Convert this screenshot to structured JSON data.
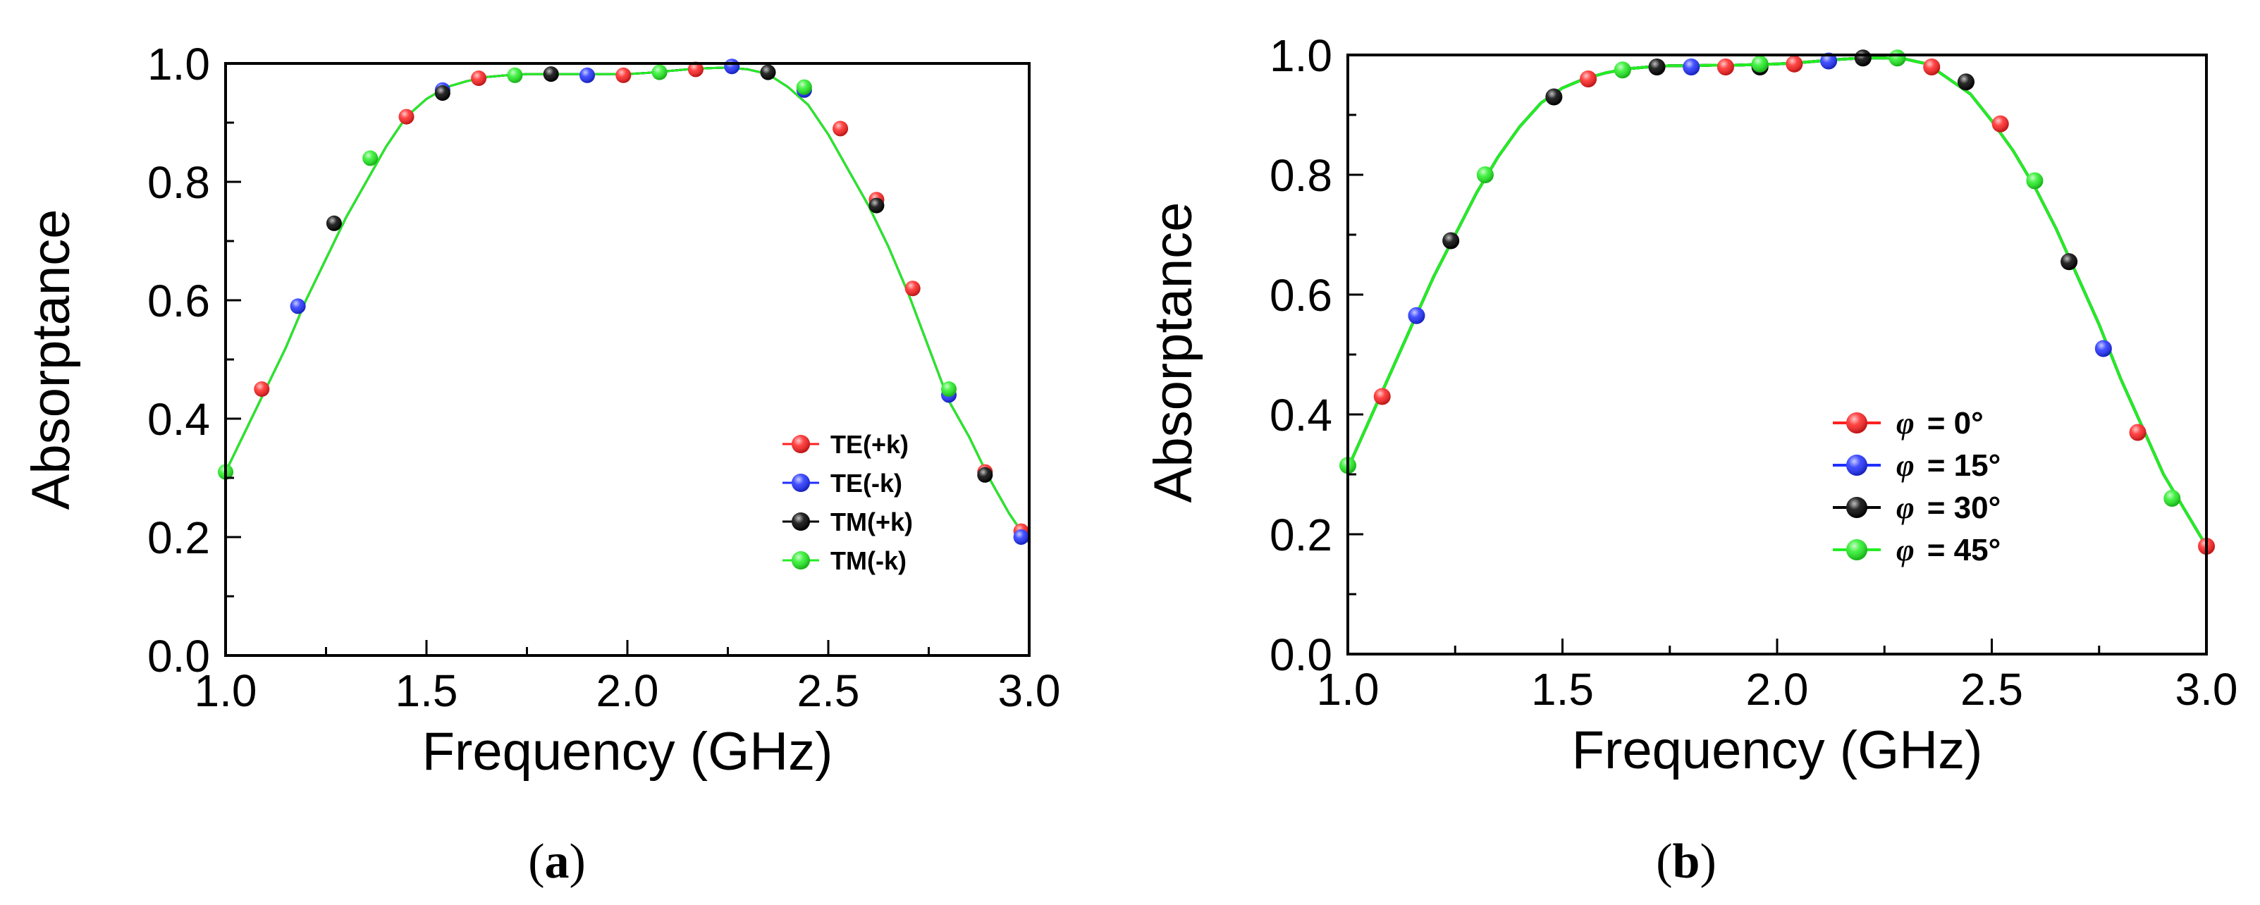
{
  "chart_data": [
    {
      "type": "line",
      "panel_id": "a",
      "caption": {
        "open": "(",
        "letter": "a",
        "close": ")"
      },
      "xlabel": "Frequency (GHz)",
      "ylabel": "Absorptance",
      "xlim": [
        1.0,
        3.0
      ],
      "ylim": [
        0.0,
        1.0
      ],
      "xticks": [
        "1.0",
        "1.5",
        "2.0",
        "2.5",
        "3.0"
      ],
      "yticks": [
        "0.0",
        "0.2",
        "0.4",
        "0.6",
        "0.8",
        "1.0"
      ],
      "grid": false,
      "legend_position": "center-right",
      "curve": {
        "x": [
          1.0,
          1.05,
          1.1,
          1.15,
          1.2,
          1.25,
          1.3,
          1.35,
          1.4,
          1.45,
          1.5,
          1.55,
          1.6,
          1.65,
          1.7,
          1.75,
          1.8,
          1.85,
          1.9,
          1.95,
          2.0,
          2.05,
          2.1,
          2.15,
          2.2,
          2.25,
          2.3,
          2.35,
          2.4,
          2.45,
          2.5,
          2.55,
          2.6,
          2.65,
          2.7,
          2.75,
          2.8,
          2.85,
          2.9,
          2.95,
          3.0
        ],
        "y": [
          0.31,
          0.38,
          0.45,
          0.52,
          0.6,
          0.67,
          0.74,
          0.8,
          0.86,
          0.91,
          0.94,
          0.96,
          0.97,
          0.977,
          0.98,
          0.982,
          0.982,
          0.982,
          0.982,
          0.982,
          0.982,
          0.984,
          0.987,
          0.99,
          0.992,
          0.993,
          0.99,
          0.982,
          0.96,
          0.93,
          0.88,
          0.82,
          0.76,
          0.69,
          0.61,
          0.52,
          0.43,
          0.37,
          0.3,
          0.24,
          0.19
        ]
      },
      "series": [
        {
          "name": "TE(+k)",
          "color": "#ff2020",
          "x": [
            1.09,
            1.45,
            1.63,
            1.99,
            2.17,
            2.53,
            2.62,
            2.71,
            2.89,
            2.98
          ],
          "y": [
            0.45,
            0.91,
            0.975,
            0.98,
            0.99,
            0.89,
            0.77,
            0.62,
            0.31,
            0.21
          ]
        },
        {
          "name": "TE(-k)",
          "color": "#2030ff",
          "x": [
            1.18,
            1.54,
            1.9,
            2.26,
            2.44,
            2.8,
            2.98
          ],
          "y": [
            0.59,
            0.955,
            0.98,
            0.995,
            0.955,
            0.44,
            0.2
          ]
        },
        {
          "name": "TM(+k)",
          "color": "#000000",
          "x": [
            1.27,
            1.54,
            1.81,
            2.35,
            2.62,
            2.89
          ],
          "y": [
            0.73,
            0.95,
            0.982,
            0.985,
            0.76,
            0.305
          ]
        },
        {
          "name": "TM(-k)",
          "color": "#22ee22",
          "x": [
            1.0,
            1.36,
            1.72,
            2.08,
            2.44,
            2.8
          ],
          "y": [
            0.31,
            0.84,
            0.98,
            0.985,
            0.96,
            0.45
          ]
        }
      ]
    },
    {
      "type": "line",
      "panel_id": "b",
      "caption": {
        "open": "(",
        "letter": "b",
        "close": ")"
      },
      "xlabel": "Frequency (GHz)",
      "ylabel": "Absorptance",
      "xlim": [
        1.0,
        3.0
      ],
      "ylim": [
        0.0,
        1.0
      ],
      "xticks": [
        "1.0",
        "1.5",
        "2.0",
        "2.5",
        "3.0"
      ],
      "yticks": [
        "0.0",
        "0.2",
        "0.4",
        "0.6",
        "0.8",
        "1.0"
      ],
      "grid": false,
      "legend_position": "bottom-right",
      "curve": {
        "x": [
          1.0,
          1.05,
          1.1,
          1.15,
          1.2,
          1.25,
          1.3,
          1.35,
          1.4,
          1.45,
          1.5,
          1.55,
          1.6,
          1.65,
          1.7,
          1.75,
          1.8,
          1.85,
          1.9,
          1.95,
          2.0,
          2.05,
          2.1,
          2.15,
          2.2,
          2.25,
          2.3,
          2.35,
          2.4,
          2.45,
          2.5,
          2.55,
          2.6,
          2.65,
          2.7,
          2.75,
          2.8,
          2.85,
          2.9,
          2.95,
          3.0
        ],
        "y": [
          0.31,
          0.39,
          0.47,
          0.55,
          0.63,
          0.7,
          0.77,
          0.83,
          0.88,
          0.92,
          0.945,
          0.96,
          0.97,
          0.977,
          0.98,
          0.982,
          0.982,
          0.983,
          0.983,
          0.984,
          0.985,
          0.987,
          0.99,
          0.993,
          0.995,
          0.995,
          0.993,
          0.985,
          0.96,
          0.935,
          0.89,
          0.84,
          0.78,
          0.71,
          0.63,
          0.55,
          0.46,
          0.38,
          0.3,
          0.24,
          0.18
        ]
      },
      "series": [
        {
          "name": "= 0°",
          "symbol": "φ",
          "color": "#ff2020",
          "x": [
            1.08,
            1.56,
            1.88,
            2.04,
            2.36,
            2.52,
            2.84,
            3.0
          ],
          "y": [
            0.43,
            0.96,
            0.98,
            0.985,
            0.98,
            0.885,
            0.37,
            0.18
          ]
        },
        {
          "name": "= 15°",
          "symbol": "φ",
          "color": "#2030ff",
          "x": [
            1.16,
            1.8,
            2.12,
            2.76
          ],
          "y": [
            0.565,
            0.98,
            0.99,
            0.51
          ]
        },
        {
          "name": "= 30°",
          "symbol": "φ",
          "color": "#000000",
          "x": [
            1.24,
            1.48,
            1.72,
            1.96,
            2.2,
            2.44,
            2.68
          ],
          "y": [
            0.69,
            0.93,
            0.98,
            0.98,
            0.995,
            0.955,
            0.655
          ]
        },
        {
          "name": "= 45°",
          "symbol": "φ",
          "color": "#22ee22",
          "x": [
            1.0,
            1.32,
            1.64,
            1.96,
            2.28,
            2.6,
            2.92
          ],
          "y": [
            0.315,
            0.8,
            0.975,
            0.985,
            0.995,
            0.79,
            0.26
          ]
        }
      ]
    }
  ]
}
